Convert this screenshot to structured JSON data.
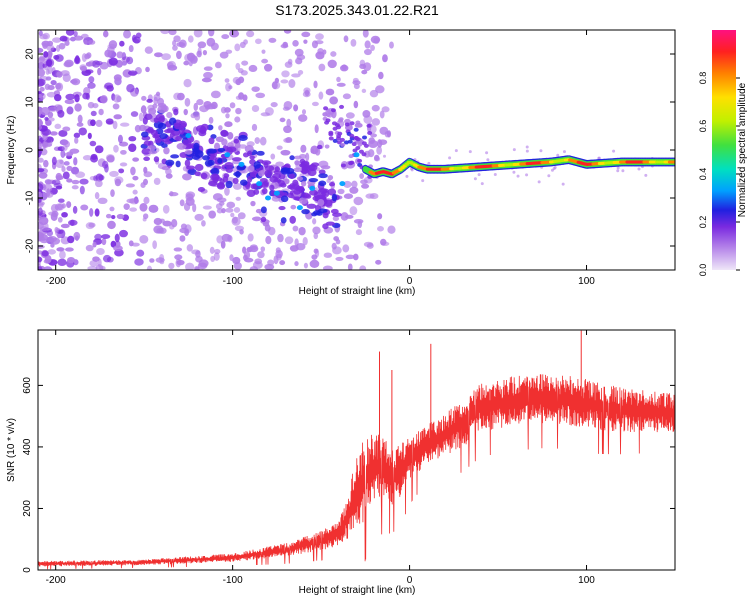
{
  "chart_data": [
    {
      "type": "heatmap",
      "title": "S173.2025.343.01.22.R21",
      "xlabel": "Height of straight line (km)",
      "ylabel": "Frequency (Hz)",
      "xlim": [
        -210,
        150
      ],
      "ylim": [
        -25,
        25
      ],
      "xticks": [
        -200,
        -100,
        0,
        100
      ],
      "yticks": [
        20,
        10,
        0,
        -10,
        -20
      ],
      "colorbar": {
        "label": "Normalized spectral amplitude",
        "range": [
          0,
          1
        ],
        "ticks": [
          "0.0",
          "0.2",
          "0.4",
          "0.6",
          "0.8"
        ],
        "colors": [
          "#efe6f8",
          "#b07ce8",
          "#7a2ae0",
          "#2020e0",
          "#00a0ff",
          "#00e0c0",
          "#40e040",
          "#c0f000",
          "#ffe000",
          "#ff8000",
          "#ff2020",
          "#ff1080"
        ]
      },
      "ridge_track": {
        "description": "dominant frequency ridge (Hz) vs height (km)",
        "x": [
          -25,
          -20,
          -15,
          -10,
          -5,
          0,
          5,
          10,
          20,
          40,
          60,
          80,
          90,
          100,
          120,
          150
        ],
        "y": [
          -4,
          -5,
          -4.5,
          -5,
          -4,
          -2.5,
          -3.5,
          -4,
          -4,
          -3.5,
          -3,
          -2.5,
          -2,
          -3,
          -2.5,
          -2.5
        ]
      }
    },
    {
      "type": "line",
      "title": "",
      "xlabel": "Height of straight line (km)",
      "ylabel": "SNR (10 * v/v)",
      "xlim": [
        -210,
        150
      ],
      "ylim": [
        0,
        780
      ],
      "xticks": [
        -200,
        -100,
        0,
        100
      ],
      "yticks": [
        0,
        200,
        400,
        600
      ],
      "color": "#f03030",
      "envelope": {
        "x": [
          -210,
          -150,
          -100,
          -70,
          -50,
          -40,
          -35,
          -30,
          -25,
          -20,
          -15,
          -10,
          -5,
          0,
          10,
          20,
          30,
          40,
          50,
          60,
          80,
          100,
          120,
          150
        ],
        "mean": [
          20,
          25,
          40,
          65,
          95,
          120,
          170,
          250,
          300,
          340,
          330,
          300,
          320,
          360,
          410,
          440,
          480,
          530,
          540,
          550,
          560,
          540,
          520,
          510
        ],
        "spread": [
          10,
          10,
          15,
          25,
          35,
          45,
          80,
          150,
          150,
          120,
          120,
          100,
          100,
          80,
          70,
          80,
          90,
          90,
          90,
          90,
          90,
          90,
          80,
          70
        ]
      },
      "spikes": [
        {
          "x": -17,
          "y": 710
        },
        {
          "x": -10,
          "y": 650
        },
        {
          "x": 12,
          "y": 735
        },
        {
          "x": 97,
          "y": 778
        }
      ]
    }
  ]
}
